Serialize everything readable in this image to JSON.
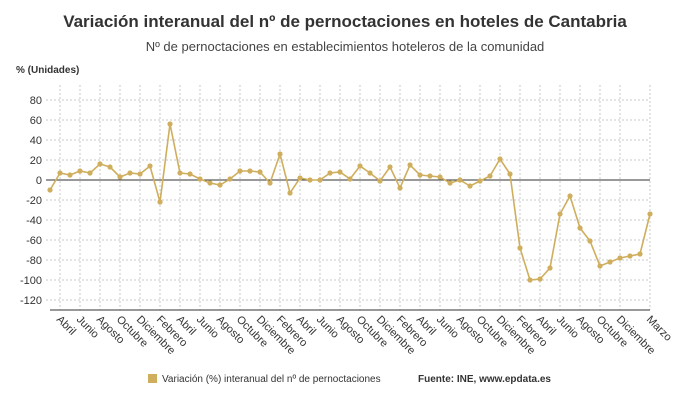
{
  "chart_data": {
    "type": "line",
    "title": "Variación interanual del nº de pernoctaciones en hoteles de Cantabria",
    "subtitle": "Nº de pernoctaciones en establecimientos hoteleros de la comunidad",
    "y_axis_label": "% (Unidades)",
    "source": "Fuente: INE, www.epdata.es",
    "categories": [
      null,
      "Abril",
      null,
      "Junio",
      null,
      "Agosto",
      null,
      "Octubre",
      null,
      "Diciembre",
      null,
      "Febrero",
      null,
      "Abril",
      null,
      "Junio",
      null,
      "Agosto",
      null,
      "Octubre",
      null,
      "Diciembre",
      null,
      "Febrero",
      null,
      "Abril",
      null,
      "Junio",
      null,
      "Agosto",
      null,
      "Octubre",
      null,
      "Diciembre",
      null,
      "Febrero",
      null,
      "Abril",
      null,
      "Junio",
      null,
      "Agosto",
      null,
      "Octubre",
      null,
      "Diciembre",
      null,
      "Febrero",
      null,
      "Abril",
      null,
      "Junio",
      null,
      "Agosto",
      null,
      "Octubre",
      null,
      "Diciembre",
      null,
      null,
      "Marzo"
    ],
    "series": [
      {
        "name": "Variación (%) interanual del nº de pernoctaciones",
        "color": "#cfae5d",
        "values": [
          -10,
          7,
          5,
          9,
          7,
          16,
          13,
          3,
          7,
          6,
          14,
          -22,
          56,
          7,
          6,
          1,
          -3,
          -5,
          1,
          9,
          9,
          8,
          -3,
          26,
          -13,
          2,
          0,
          0,
          7,
          8,
          1,
          14,
          7,
          -1,
          13,
          -8,
          15,
          5,
          4,
          3,
          -3,
          0,
          -6,
          -1,
          4,
          21,
          6,
          -68,
          -100,
          -99,
          -88,
          -34,
          -16,
          -48,
          -61,
          -86,
          -82,
          -78,
          -76,
          -74,
          -34
        ]
      }
    ],
    "ylim": [
      -130,
      95
    ],
    "yticks": [
      -120,
      -100,
      -80,
      -60,
      -40,
      -20,
      0,
      20,
      40,
      60,
      80
    ],
    "grid": true
  }
}
